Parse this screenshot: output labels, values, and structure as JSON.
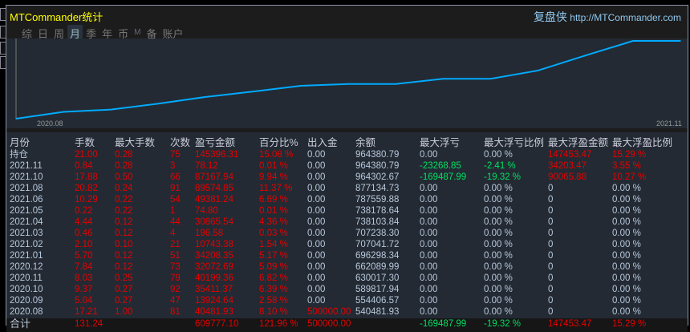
{
  "window": {
    "title": "MTCommander统计",
    "brand": "复盘侠",
    "url": "http://MTCommander.com"
  },
  "tabs": [
    {
      "label": "综"
    },
    {
      "label": "日"
    },
    {
      "label": "周"
    },
    {
      "label": "月",
      "active": true
    },
    {
      "label": "季"
    },
    {
      "label": "年"
    },
    {
      "label": "币"
    },
    {
      "label": "M"
    },
    {
      "label": "备"
    },
    {
      "label": "账户"
    }
  ],
  "chart_data": {
    "type": "line",
    "x": [
      "2020.08",
      "2020.08",
      "2020.09",
      "2020.10",
      "2020.11",
      "2020.12",
      "2021.01",
      "2021.02",
      "2021.03",
      "2021.04",
      "2021.05",
      "2021.06",
      "2021.08",
      "2021.10",
      "2021.11"
    ],
    "values": [
      500000,
      540481.93,
      554406.57,
      589817.94,
      630017.3,
      662089.99,
      696298.34,
      707041.72,
      707238.3,
      738103.84,
      738178.64,
      787559.88,
      877134.73,
      964302.67,
      964380.79
    ],
    "xtick_labels": [
      "2020.08",
      "2021.11"
    ],
    "color": "#00aaff",
    "grid": false
  },
  "table": {
    "headers": [
      "月份",
      "手数",
      "最大手数",
      "次数",
      "盈亏金额",
      "百分比%",
      "出入金",
      "余额",
      "最大浮亏",
      "最大浮亏比例",
      "最大浮盈金额",
      "最大浮盈比例"
    ],
    "rows": [
      [
        "持仓",
        "21.00",
        "0.28",
        "75",
        "145396.31",
        "15.08 %",
        "0.00",
        "964380.79",
        "0.00",
        "0.00 %",
        "147453.47",
        "15.29 %"
      ],
      [
        "2021.11",
        "0.84",
        "0.28",
        "3",
        "78.12",
        "0.01 %",
        "0.00",
        "964380.79",
        "-23268.85",
        "-2.41 %",
        "34203.47",
        "3.55 %"
      ],
      [
        "2021.10",
        "17.88",
        "0.50",
        "66",
        "87167.94",
        "9.94 %",
        "0.00",
        "964302.67",
        "-169487.99",
        "-19.32 %",
        "90065.88",
        "10.27 %"
      ],
      [
        "2021.08",
        "20.82",
        "0.24",
        "91",
        "89574.85",
        "11.37 %",
        "0.00",
        "877134.73",
        "0.00",
        "0.00 %",
        "0",
        "0.00 %"
      ],
      [
        "2021.06",
        "10.29",
        "0.22",
        "54",
        "49381.24",
        "6.69 %",
        "0.00",
        "787559.88",
        "0.00",
        "0.00 %",
        "0",
        "0.00 %"
      ],
      [
        "2021.05",
        "0.22",
        "0.22",
        "1",
        "74.80",
        "0.01 %",
        "0.00",
        "738178.64",
        "0.00",
        "0.00 %",
        "0",
        "0.00 %"
      ],
      [
        "2021.04",
        "4.44",
        "0.12",
        "44",
        "30865.54",
        "4.36 %",
        "0.00",
        "738103.84",
        "0.00",
        "0.00 %",
        "0",
        "0.00 %"
      ],
      [
        "2021.03",
        "0.46",
        "0.12",
        "4",
        "196.58",
        "0.03 %",
        "0.00",
        "707238.30",
        "0.00",
        "0.00 %",
        "0",
        "0.00 %"
      ],
      [
        "2021.02",
        "2.10",
        "0.10",
        "21",
        "10743.38",
        "1.54 %",
        "0.00",
        "707041.72",
        "0.00",
        "0.00 %",
        "0",
        "0.00 %"
      ],
      [
        "2021.01",
        "5.70",
        "0.12",
        "51",
        "34208.35",
        "5.17 %",
        "0.00",
        "696298.34",
        "0.00",
        "0.00 %",
        "0",
        "0.00 %"
      ],
      [
        "2020.12",
        "7.84",
        "0.12",
        "73",
        "32072.69",
        "5.09 %",
        "0.00",
        "662089.99",
        "0.00",
        "0.00 %",
        "0",
        "0.00 %"
      ],
      [
        "2020.11",
        "8.03",
        "0.25",
        "79",
        "40199.36",
        "6.82 %",
        "0.00",
        "630017.30",
        "0.00",
        "0.00 %",
        "0",
        "0.00 %"
      ],
      [
        "2020.10",
        "9.37",
        "0.27",
        "92",
        "35411.37",
        "6.39 %",
        "0.00",
        "589817.94",
        "0.00",
        "0.00 %",
        "0",
        "0.00 %"
      ],
      [
        "2020.09",
        "5.04",
        "0.27",
        "47",
        "13924.64",
        "2.58 %",
        "0.00",
        "554406.57",
        "0.00",
        "0.00 %",
        "0",
        "0.00 %"
      ],
      [
        "2020.08",
        "17.21",
        "1.00",
        "81",
        "40481.93",
        "8.10 %",
        "500000.00",
        "540481.93",
        "0.00",
        "0.00 %",
        "0",
        "0.00 %"
      ]
    ],
    "total": [
      "合计",
      "131.24",
      "",
      "",
      "609777.10",
      "121.96 %",
      "500000.00",
      "",
      "-169487.99",
      "-19.32 %",
      "147453.47",
      "15.29 %"
    ]
  },
  "colors": {
    "profit": "#e60000",
    "loss": "#00e060",
    "text": "#b8c8dc",
    "title": "#ffff00"
  }
}
